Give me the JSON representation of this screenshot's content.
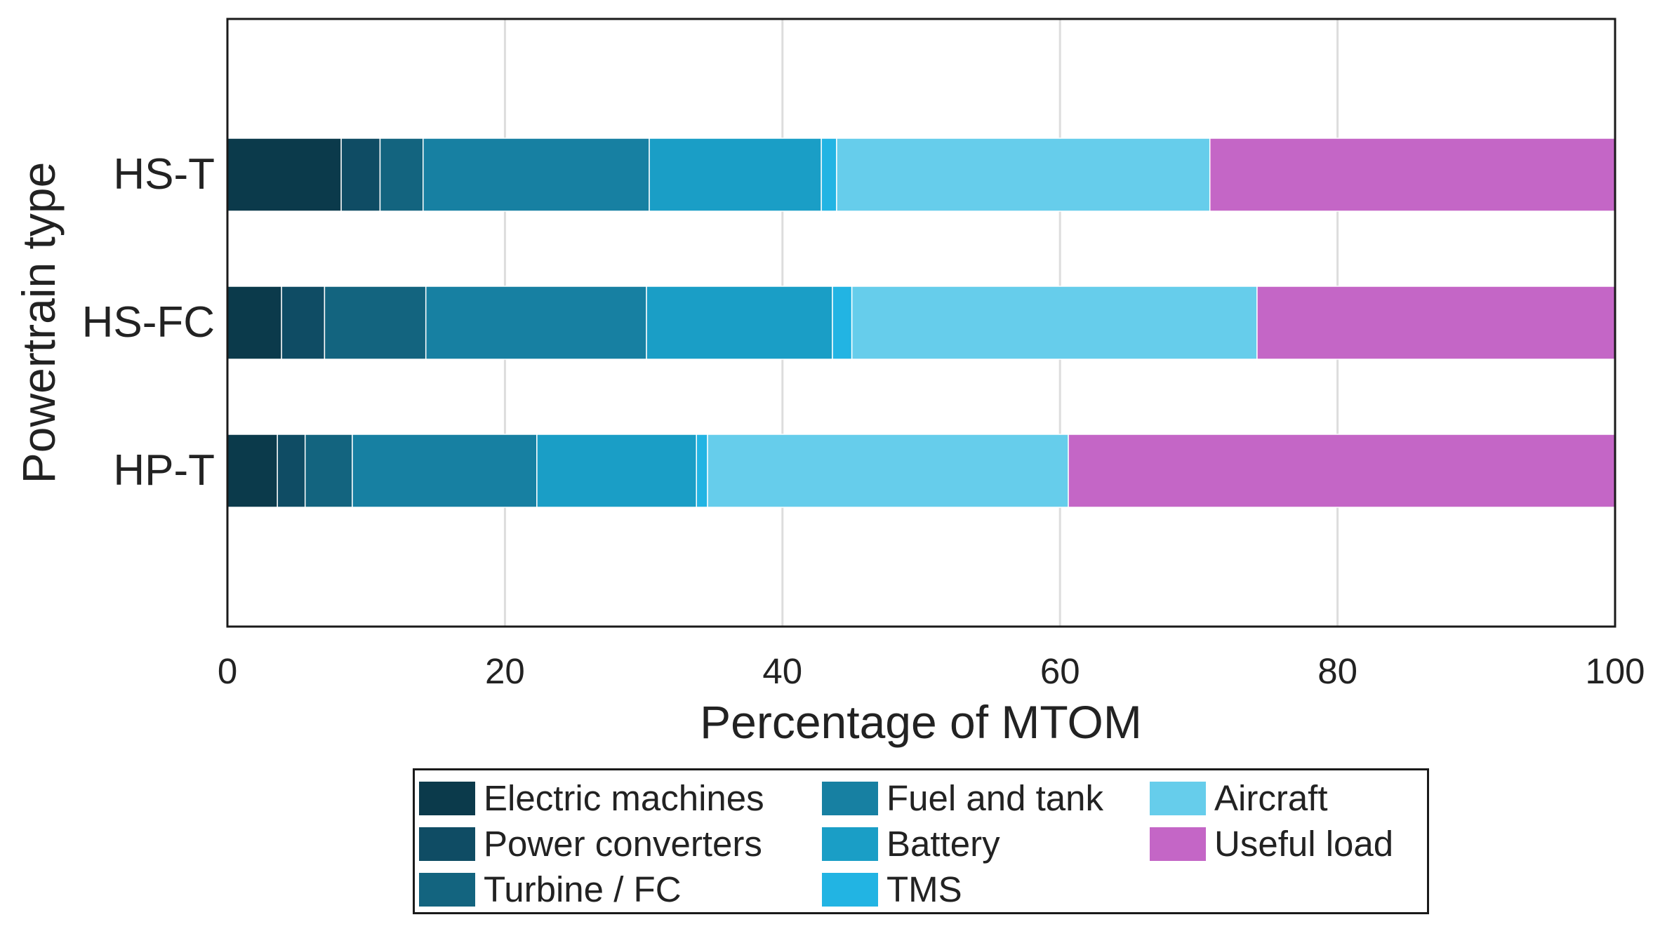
{
  "chart_data": {
    "type": "bar",
    "orientation": "horizontal",
    "stacked": true,
    "categories": [
      "HS-T",
      "HS-FC",
      "HP-T"
    ],
    "xlabel": "Percentage of MTOM",
    "ylabel": "Powertrain type",
    "xlim": [
      0,
      100
    ],
    "xticks": [
      0,
      20,
      40,
      60,
      80,
      100
    ],
    "grid": true,
    "legend_position": "bottom-center",
    "series": [
      {
        "name": "Electric machines",
        "color": "#0b3a4b",
        "values": [
          8.2,
          3.9,
          3.6
        ]
      },
      {
        "name": "Power converters",
        "color": "#0f4c64",
        "values": [
          2.8,
          3.1,
          2.0
        ]
      },
      {
        "name": "Turbine / FC",
        "color": "#13647f",
        "values": [
          3.1,
          7.3,
          3.4
        ]
      },
      {
        "name": "Fuel and tank",
        "color": "#1780a2",
        "values": [
          16.3,
          15.9,
          13.3
        ]
      },
      {
        "name": "Battery",
        "color": "#1a9ec6",
        "values": [
          12.4,
          13.4,
          11.5
        ]
      },
      {
        "name": "TMS",
        "color": "#22b4e3",
        "values": [
          1.1,
          1.4,
          0.8
        ]
      },
      {
        "name": "Aircraft",
        "color": "#66cdeb",
        "values": [
          26.9,
          29.2,
          26.0
        ]
      },
      {
        "name": "Useful load",
        "color": "#c466c6",
        "values": [
          29.2,
          25.8,
          39.4
        ]
      }
    ]
  }
}
